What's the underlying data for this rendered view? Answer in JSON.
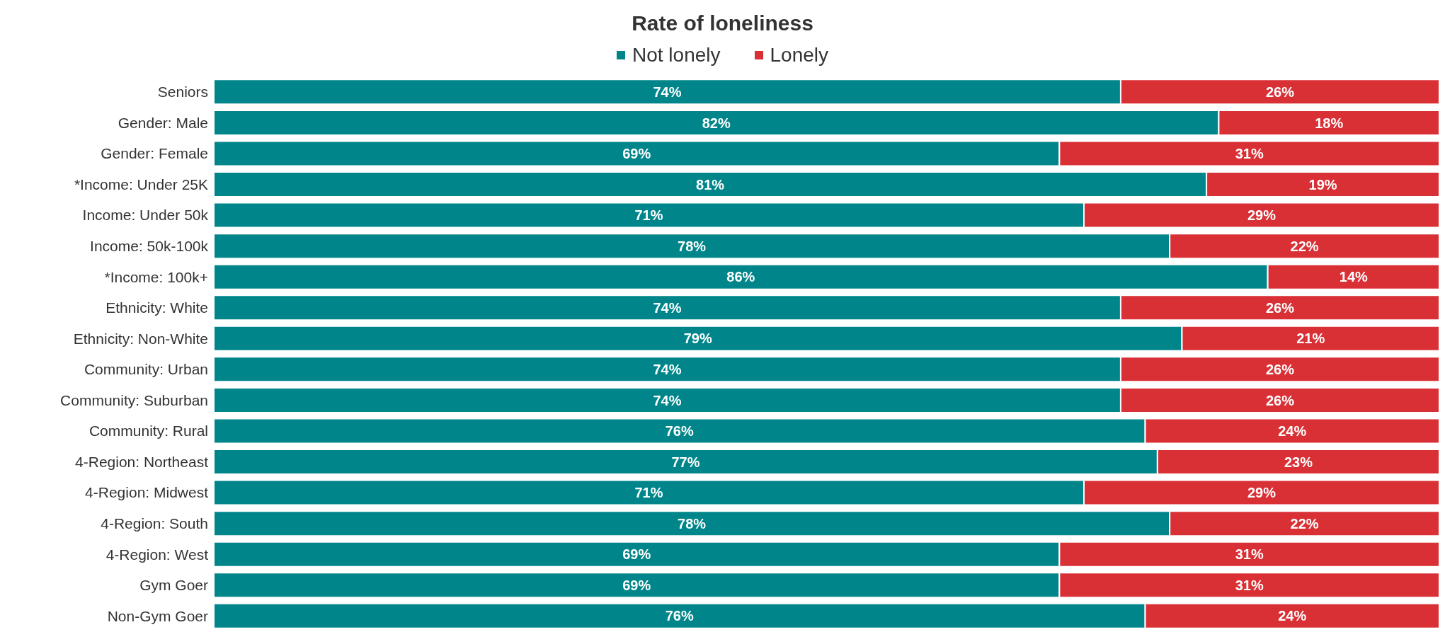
{
  "chart_data": {
    "type": "bar",
    "orientation": "horizontal",
    "stacked": true,
    "title": "Rate of loneliness",
    "legend": "top",
    "categories": [
      "Seniors",
      "Gender: Male",
      "Gender: Female",
      "*Income: Under 25K",
      "Income: Under 50k",
      "Income: 50k-100k",
      "*Income: 100k+",
      "Ethnicity: White",
      "Ethnicity: Non-White",
      "Community: Urban",
      "Community: Suburban",
      "Community: Rural",
      "4-Region: Northeast",
      "4-Region: Midwest",
      "4-Region: South",
      "4-Region: West",
      "Gym Goer",
      "Non-Gym Goer"
    ],
    "series": [
      {
        "name": "Not lonely",
        "color": "#00868a",
        "values": [
          74,
          82,
          69,
          81,
          71,
          78,
          86,
          74,
          79,
          74,
          74,
          76,
          77,
          71,
          78,
          69,
          69,
          76
        ],
        "value_labels": [
          "74%",
          "82%",
          "69%",
          "81%",
          "71%",
          "78%",
          "86%",
          "74%",
          "79%",
          "74%",
          "74%",
          "76%",
          "77%",
          "71%",
          "78%",
          "69%",
          "69%",
          "76%"
        ]
      },
      {
        "name": "Lonely",
        "color": "#d93036",
        "values": [
          26,
          18,
          31,
          19,
          29,
          22,
          14,
          26,
          21,
          26,
          26,
          24,
          23,
          29,
          22,
          31,
          31,
          24
        ],
        "value_labels": [
          "26%",
          "18%",
          "31%",
          "19%",
          "29%",
          "22%",
          "14%",
          "26%",
          "21%",
          "26%",
          "26%",
          "24%",
          "23%",
          "29%",
          "22%",
          "31%",
          "31%",
          "24%"
        ]
      }
    ]
  }
}
